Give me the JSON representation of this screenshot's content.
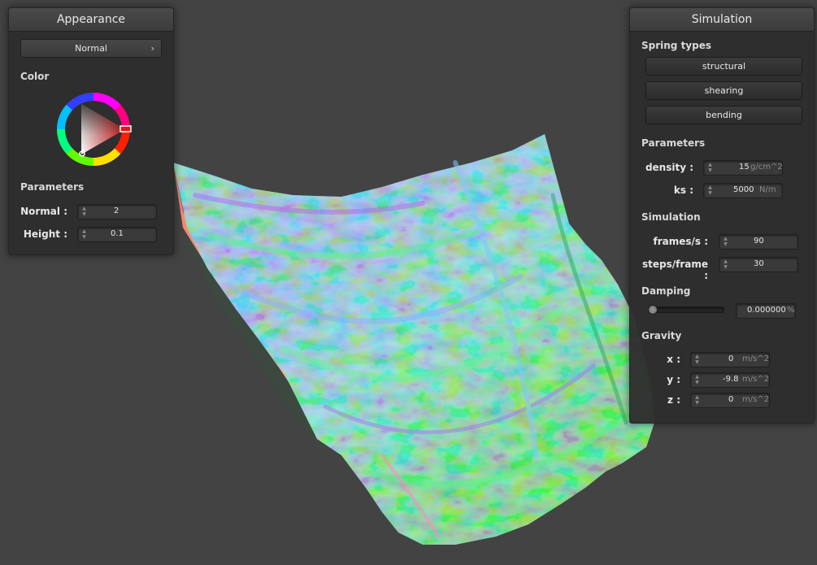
{
  "appearance": {
    "title": "Appearance",
    "shader_selected": "Normal",
    "color_label": "Color",
    "parameters_label": "Parameters",
    "normal_label": "Normal :",
    "normal_value": "2",
    "height_label": "Height :",
    "height_value": "0.1"
  },
  "simulation": {
    "title": "Simulation",
    "spring_types_label": "Spring types",
    "structural_label": "structural",
    "shearing_label": "shearing",
    "bending_label": "bending",
    "parameters_label": "Parameters",
    "density_label": "density :",
    "density_value": "15",
    "density_unit": "g/cm^2",
    "ks_label": "ks :",
    "ks_value": "5000",
    "ks_unit": "N/m",
    "simulation_label": "Simulation",
    "fps_label": "frames/s :",
    "fps_value": "90",
    "steps_label": "steps/frame :",
    "steps_value": "30",
    "damping_label": "Damping",
    "damping_value": "0.000000",
    "damping_unit": "%",
    "damping_fraction": 0,
    "gravity_label": "Gravity",
    "gx_label": "x :",
    "gx_value": "0",
    "gy_label": "y :",
    "gy_value": "-9.8",
    "gz_label": "z :",
    "gz_value": "0",
    "g_unit": "m/s^2"
  },
  "colors": {
    "background": "#434343",
    "panel": "#2e2e2e",
    "selected_color": "#e01818"
  }
}
